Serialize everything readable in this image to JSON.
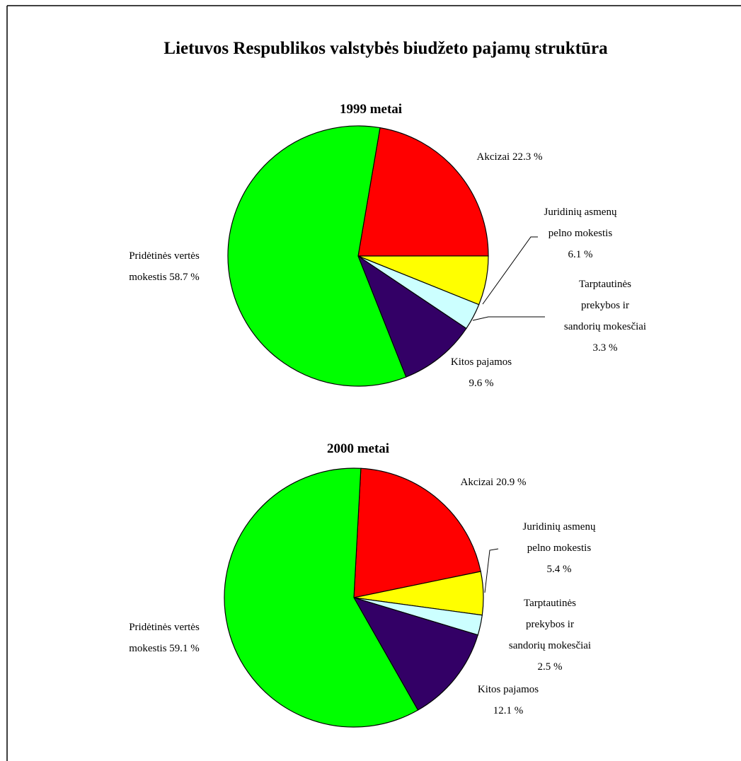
{
  "title": "Lietuvos Respublikos valstybės  biudžeto pajamų struktūra",
  "chart_data": [
    {
      "type": "pie",
      "title": "1999 metai",
      "categories": [
        "Akcizai",
        "Juridinių asmenų pelno mokestis",
        "Tarptautinės prekybos ir sandorių mokesčiai",
        "Kitos pajamos",
        "Pridėtinės vertės mokestis"
      ],
      "values": [
        22.3,
        6.1,
        3.3,
        9.6,
        58.7
      ],
      "value_labels": [
        "22.3 %",
        "6.1 %",
        "3.3 %",
        "9.6 %",
        "58.7 %"
      ],
      "colors": [
        "#ff0000",
        "#ffff00",
        "#ccffff",
        "#330066",
        "#00ff00"
      ]
    },
    {
      "type": "pie",
      "title": "2000 metai",
      "categories": [
        "Akcizai",
        "Juridinių asmenų pelno mokestis",
        "Tarptautinės prekybos ir sandorių mokesčiai",
        "Kitos pajamos",
        "Pridėtinės vertės mokestis"
      ],
      "values": [
        20.9,
        5.4,
        2.5,
        12.1,
        59.1
      ],
      "value_labels": [
        "20.9 %",
        "5.4 %",
        "2.5 %",
        "12.1 %",
        "59.1 %"
      ],
      "colors": [
        "#ff0000",
        "#ffff00",
        "#ccffff",
        "#330066",
        "#00ff00"
      ]
    }
  ]
}
